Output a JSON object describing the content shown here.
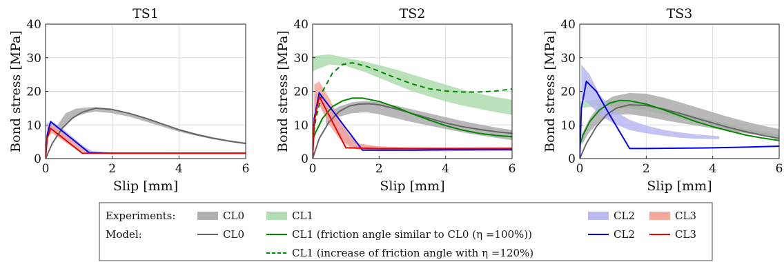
{
  "chart_data": [
    {
      "type": "line",
      "title": "TS1",
      "xlabel": "Slip [mm]",
      "ylabel": "Bond stress [MPa]",
      "xlim": [
        0,
        6
      ],
      "ylim": [
        0,
        40
      ],
      "xticks": [
        0,
        2,
        4,
        6
      ],
      "yticks": [
        0,
        10,
        20,
        30,
        40
      ],
      "grid": true,
      "bands": [
        {
          "name": "CL0",
          "color": "#a6a6a6",
          "x": [
            0.3,
            0.6,
            0.9,
            1.2,
            1.5,
            2.0,
            2.5,
            3.0,
            3.5,
            4.0,
            4.5,
            5.0,
            5.5,
            6.0
          ],
          "lower": [
            6,
            10,
            12.5,
            13.5,
            14,
            13.5,
            12.5,
            11,
            9.5,
            8,
            6.8,
            5.8,
            5,
            4.3
          ],
          "upper": [
            9,
            13.5,
            14.8,
            15.2,
            15.3,
            14.8,
            13.6,
            12,
            10.3,
            8.8,
            7.5,
            6.4,
            5.5,
            4.8
          ]
        },
        {
          "name": "CL2",
          "color": "#b3b3f0",
          "x": [
            0.05,
            0.2,
            0.5,
            0.8,
            1.1,
            1.4,
            2.0,
            3.0,
            4.0,
            5.0,
            6.0
          ],
          "lower": [
            7.5,
            8.5,
            6.5,
            4.5,
            2.5,
            1.6,
            1.5,
            1.5,
            1.4,
            1.4,
            1.4
          ],
          "upper": [
            10.5,
            11,
            9,
            6.5,
            4.0,
            2.2,
            1.8,
            1.7,
            1.6,
            1.6,
            1.6
          ]
        },
        {
          "name": "CL3",
          "color": "#f4a090",
          "x": [
            0.05,
            0.2,
            0.5,
            0.8,
            1.1,
            1.4,
            2.0,
            3.0,
            4.0,
            5.0,
            6.0
          ],
          "lower": [
            6.5,
            7.5,
            5.5,
            3.5,
            2.0,
            1.5,
            1.4,
            1.4,
            1.4,
            1.4,
            1.4
          ],
          "upper": [
            9.5,
            10,
            8,
            5.5,
            3.0,
            2.0,
            1.7,
            1.7,
            1.7,
            1.7,
            1.7
          ]
        }
      ],
      "lines": [
        {
          "name": "CL0",
          "color": "#666666",
          "style": "solid",
          "x": [
            0,
            0.2,
            0.5,
            0.8,
            1.1,
            1.5,
            2.0,
            2.5,
            3.0,
            3.5,
            4.0,
            4.5,
            5.0,
            5.5,
            6.0
          ],
          "y": [
            0,
            4.5,
            9,
            12,
            13.8,
            15,
            14.6,
            13.5,
            12,
            10.3,
            8.6,
            7.2,
            6.1,
            5.2,
            4.5
          ]
        },
        {
          "name": "CL2",
          "color": "#0000ee",
          "style": "solid",
          "x": [
            0,
            0.05,
            0.15,
            1.3,
            2.0,
            3.0,
            4.0,
            5.0,
            6.0
          ],
          "y": [
            0,
            7,
            11,
            1.8,
            1.6,
            1.6,
            1.6,
            1.6,
            1.6
          ]
        },
        {
          "name": "CL3",
          "color": "#ee0000",
          "style": "solid",
          "x": [
            0,
            0.05,
            0.15,
            1.1,
            2.0,
            3.0,
            4.0,
            5.0,
            6.0
          ],
          "y": [
            0,
            6,
            9,
            1.6,
            1.6,
            1.6,
            1.6,
            1.6,
            1.6
          ]
        }
      ]
    },
    {
      "type": "line",
      "title": "TS2",
      "xlabel": "Slip [mm]",
      "ylabel": "Bond stress [MPa]",
      "xlim": [
        0,
        6
      ],
      "ylim": [
        0,
        40
      ],
      "xticks": [
        0,
        2,
        4,
        6
      ],
      "yticks": [
        0,
        10,
        20,
        30,
        40
      ],
      "grid": true,
      "bands": [
        {
          "name": "CL1",
          "color": "#a9d9a9",
          "x": [
            0,
            0.5,
            1.0,
            1.5,
            2.0,
            2.5,
            3.0,
            3.5,
            4.0,
            4.5,
            5.0,
            5.5,
            6.0
          ],
          "lower": [
            26,
            28,
            27.5,
            26,
            24,
            22,
            20,
            18.5,
            17,
            15.8,
            14.8,
            13.8,
            13
          ],
          "upper": [
            30.5,
            31,
            30,
            29,
            27.8,
            26.5,
            25,
            23.5,
            22,
            20.5,
            19.3,
            18.3,
            17.5
          ]
        },
        {
          "name": "CL0",
          "color": "#a6a6a6",
          "x": [
            0.4,
            0.8,
            1.2,
            1.6,
            2.0,
            2.5,
            3.0,
            3.5,
            4.0,
            4.5,
            5.0,
            5.5,
            6.0
          ],
          "lower": [
            10,
            12.5,
            13.5,
            13.8,
            13.2,
            12,
            10.8,
            9.8,
            8.8,
            7.8,
            7,
            6.2,
            5.5
          ],
          "upper": [
            13,
            15.5,
            16.8,
            17.2,
            16.8,
            15.8,
            14.6,
            13.5,
            12.3,
            11.2,
            10.2,
            9.3,
            8.5
          ]
        },
        {
          "name": "CL2",
          "color": "#b3b3f0",
          "x": [
            0.05,
            0.2,
            0.5,
            0.8,
            1.1,
            1.4,
            2.0,
            3.0,
            4.0,
            5.0,
            6.0
          ],
          "lower": [
            14,
            16,
            11,
            7,
            4,
            2.6,
            2.2,
            2.2,
            2.2,
            2.3,
            2.4
          ],
          "upper": [
            19,
            20,
            16,
            11,
            7,
            4.0,
            3.2,
            3.0,
            3.0,
            3.0,
            3.1
          ]
        },
        {
          "name": "CL3",
          "color": "#f4a090",
          "x": [
            0.05,
            0.2,
            0.5,
            0.8,
            1.1,
            1.4,
            2.0,
            3.0,
            4.0,
            5.0,
            6.0
          ],
          "lower": [
            15,
            16,
            10,
            6,
            3.5,
            2.6,
            2.4,
            2.5,
            2.6,
            2.7,
            2.8
          ],
          "upper": [
            22,
            23,
            18,
            12,
            7,
            4.5,
            3.6,
            3.3,
            3.2,
            3.3,
            3.4
          ]
        }
      ],
      "lines": [
        {
          "name": "CL0",
          "color": "#666666",
          "style": "solid",
          "x": [
            0,
            0.2,
            0.5,
            0.8,
            1.1,
            1.4,
            1.7,
            2.0,
            2.5,
            3.0,
            3.5,
            4.0,
            4.5,
            5.0,
            5.5,
            6.0
          ],
          "y": [
            0,
            6,
            11,
            14,
            15.6,
            16.2,
            16.3,
            16,
            14.8,
            13.4,
            12,
            10.6,
            9.5,
            8.7,
            8.0,
            7.5
          ]
        },
        {
          "name": "CL1 (friction angle similar to CL0 (η =100%))",
          "color": "#008800",
          "style": "solid",
          "x": [
            0,
            0.1,
            0.3,
            0.6,
            0.9,
            1.2,
            1.5,
            2.0,
            2.5,
            3.0,
            3.5,
            4.0,
            4.5,
            5.0,
            5.5,
            6.0
          ],
          "y": [
            5.5,
            8,
            12,
            15.5,
            17.2,
            18,
            18,
            17,
            15.3,
            13.3,
            11.5,
            9.8,
            8.5,
            7.5,
            6.9,
            6.5
          ]
        },
        {
          "name": "CL1 (increase of friction angle with η =120%)",
          "color": "#008800",
          "style": "dashed",
          "x": [
            0,
            0.1,
            0.3,
            0.6,
            0.9,
            1.2,
            1.6,
            2.0,
            2.5,
            3.0,
            3.5,
            4.0,
            4.5,
            5.0,
            5.5,
            6.0
          ],
          "y": [
            5.5,
            12,
            20,
            25.5,
            28,
            28.5,
            27.5,
            26,
            24,
            22.2,
            20.8,
            20.1,
            19.8,
            19.8,
            20.1,
            20.7
          ]
        },
        {
          "name": "CL2",
          "color": "#0000ee",
          "style": "solid",
          "x": [
            0,
            0.05,
            0.2,
            1.5,
            2.0,
            3.0,
            4.0,
            5.0,
            6.0
          ],
          "y": [
            0,
            12,
            19.5,
            2.5,
            2.5,
            2.5,
            2.6,
            2.6,
            2.6
          ]
        },
        {
          "name": "CL3",
          "color": "#ee0000",
          "style": "solid",
          "x": [
            0,
            0.05,
            0.2,
            1.0,
            2.0,
            3.0,
            4.0,
            5.0,
            6.0
          ],
          "y": [
            0,
            11,
            18.5,
            3.2,
            3.0,
            3.0,
            3.0,
            3.0,
            3.0
          ]
        }
      ]
    },
    {
      "type": "line",
      "title": "TS3",
      "xlabel": "Slip [mm]",
      "ylabel": "Bond stress [MPa]",
      "xlim": [
        0,
        6
      ],
      "ylim": [
        0,
        40
      ],
      "xticks": [
        0,
        2,
        4,
        6
      ],
      "yticks": [
        0,
        10,
        20,
        30,
        40
      ],
      "grid": true,
      "bands": [
        {
          "name": "CL1",
          "color": "#a9d9a9",
          "x": [
            0,
            0.5,
            1.0,
            1.5,
            2.0,
            2.5,
            3.0,
            3.5,
            4.0,
            4.5,
            5.0,
            5.5,
            6.0
          ],
          "lower": [
            15,
            15.5,
            15.5,
            15,
            14.2,
            13.2,
            12,
            10.8,
            9.6,
            8.6,
            7.6,
            6.8,
            6
          ],
          "upper": [
            17,
            17.5,
            17.2,
            16.8,
            16,
            15,
            13.8,
            12.6,
            11.3,
            10.1,
            9,
            8,
            7
          ]
        },
        {
          "name": "CL0",
          "color": "#a6a6a6",
          "x": [
            0.05,
            0.3,
            0.6,
            1.0,
            1.5,
            2.0,
            2.5,
            3.0,
            3.5,
            4.0,
            4.5,
            5.0,
            5.5,
            6.0
          ],
          "lower": [
            4,
            8,
            11,
            13,
            13.2,
            12.5,
            11.5,
            10.6,
            9.8,
            9.0,
            8.2,
            7.5,
            6.8,
            6.2
          ],
          "upper": [
            7,
            12,
            16,
            18.5,
            19.5,
            19.3,
            18.2,
            16.8,
            15.3,
            13.8,
            12.3,
            11.0,
            9.8,
            8.8
          ]
        },
        {
          "name": "CL2",
          "color": "#b3b3f0",
          "x": [
            0.05,
            0.3,
            0.6,
            1.0,
            1.5,
            2.0,
            2.5,
            3.0,
            3.5,
            4.0,
            4.2
          ],
          "lower": [
            18,
            16,
            13,
            10.5,
            8.5,
            7.5,
            6.8,
            6.2,
            5.9,
            5.8,
            5.8
          ],
          "upper": [
            28,
            25,
            19,
            14.5,
            11.5,
            9.8,
            8.6,
            7.8,
            7.2,
            6.8,
            6.6
          ]
        }
      ],
      "lines": [
        {
          "name": "CL0",
          "color": "#666666",
          "style": "solid",
          "x": [
            0,
            0.2,
            0.5,
            0.8,
            1.1,
            1.5,
            2.0,
            2.5,
            3.0,
            3.5,
            4.0,
            4.5,
            5.0,
            5.5,
            6.0
          ],
          "y": [
            0,
            4.5,
            9.5,
            13,
            15,
            16,
            15.8,
            14.8,
            13.5,
            12,
            10.6,
            9.2,
            8.0,
            6.9,
            6.0
          ]
        },
        {
          "name": "CL1 (friction angle similar to CL0 (η =100%))",
          "color": "#008800",
          "style": "solid",
          "x": [
            0,
            0.1,
            0.3,
            0.6,
            0.9,
            1.2,
            1.5,
            2.0,
            2.5,
            3.0,
            3.5,
            4.0,
            4.5,
            5.0,
            5.5,
            6.0
          ],
          "y": [
            4,
            7,
            11,
            14.5,
            16.5,
            17.3,
            17.2,
            16.2,
            14.6,
            12.8,
            11,
            9.5,
            8.2,
            7.0,
            6.1,
            5.4
          ]
        },
        {
          "name": "CL2",
          "color": "#0000ee",
          "style": "solid",
          "x": [
            0,
            0.05,
            0.2,
            0.5,
            0.9,
            1.5,
            2.0,
            3.0,
            4.0,
            5.0,
            6.0
          ],
          "y": [
            0,
            15,
            23,
            20,
            13,
            3,
            3,
            3.1,
            3.2,
            3.4,
            3.7
          ]
        }
      ]
    }
  ],
  "legend": {
    "row1": {
      "label": "Experiments:",
      "items": [
        {
          "name": "CL0",
          "kind": "band",
          "color": "#a6a6a6"
        },
        {
          "name": "CL1",
          "kind": "band",
          "color": "#a9d9a9"
        },
        {
          "name": "CL2",
          "kind": "band",
          "color": "#b3b3f0"
        },
        {
          "name": "CL3",
          "kind": "band",
          "color": "#f4a090"
        }
      ]
    },
    "row2": {
      "label": "Model:",
      "items": [
        {
          "name": "CL0",
          "kind": "line",
          "color": "#666666",
          "style": "solid"
        },
        {
          "name": "CL1 (friction angle similar to CL0 (η =100%))",
          "kind": "line",
          "color": "#008800",
          "style": "solid"
        },
        {
          "name": "CL2",
          "kind": "line",
          "color": "#0000ee",
          "style": "solid"
        },
        {
          "name": "CL3",
          "kind": "line",
          "color": "#ee0000",
          "style": "solid"
        }
      ]
    },
    "row3": {
      "items": [
        {
          "name": "CL1 (increase of friction angle with η =120%)",
          "kind": "line",
          "color": "#008800",
          "style": "dashed"
        }
      ]
    }
  }
}
